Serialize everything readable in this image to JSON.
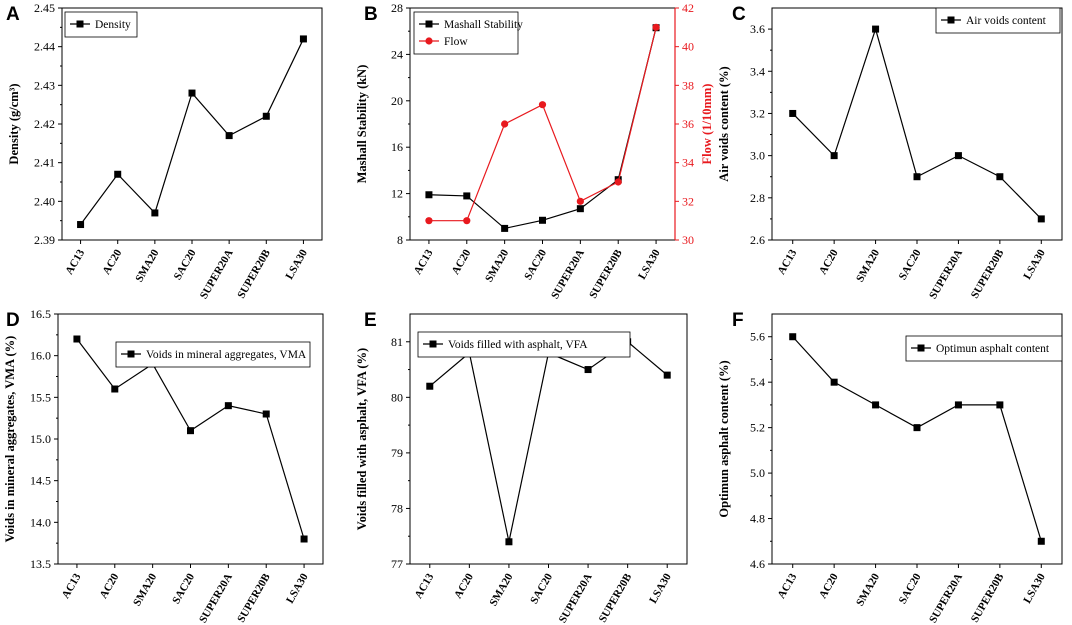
{
  "colors": {
    "primary": "#000000",
    "secondary": "#e8191e"
  },
  "chart_data": [
    {
      "panel": "A",
      "type": "line",
      "categories": [
        "AC13",
        "AC20",
        "SMA20",
        "SAC20",
        "SUPER20A",
        "SUPER20B",
        "LSA30"
      ],
      "ylabel": "Density (g/cm³)",
      "ylim": [
        2.39,
        2.45
      ],
      "yticks": [
        "2.39",
        "2.40",
        "2.41",
        "2.42",
        "2.43",
        "2.44",
        "2.45"
      ],
      "legend_position": "top-left",
      "series": [
        {
          "name": "Density",
          "values": [
            2.394,
            2.407,
            2.397,
            2.428,
            2.417,
            2.422,
            2.442
          ]
        }
      ]
    },
    {
      "panel": "B",
      "type": "line",
      "categories": [
        "AC13",
        "AC20",
        "SMA20",
        "SAC20",
        "SUPER20A",
        "SUPER20B",
        "LSA30"
      ],
      "ylabel": "Mashall Stability (kN)",
      "ylim": [
        8,
        28
      ],
      "yticks": [
        "8",
        "12",
        "16",
        "20",
        "24",
        "28"
      ],
      "y2label": "Flow (1/10mm)",
      "y2lim": [
        30,
        42
      ],
      "y2ticks": [
        "30",
        "32",
        "34",
        "36",
        "38",
        "40",
        "42"
      ],
      "legend_position": "top-left",
      "series": [
        {
          "name": "Mashall Stability",
          "axis": "left",
          "values": [
            11.9,
            11.8,
            9.0,
            9.7,
            10.7,
            13.2,
            26.3
          ]
        },
        {
          "name": "Flow",
          "axis": "right",
          "values": [
            31,
            31,
            36,
            37,
            32,
            33,
            41
          ]
        }
      ]
    },
    {
      "panel": "C",
      "type": "line",
      "categories": [
        "AC13",
        "AC20",
        "SMA20",
        "SAC20",
        "SUPER20A",
        "SUPER20B",
        "LSA30"
      ],
      "ylabel": "Air voids content (%)",
      "ylim": [
        2.6,
        3.7
      ],
      "yticks": [
        "2.6",
        "2.8",
        "3.0",
        "3.2",
        "3.4",
        "3.6"
      ],
      "legend_position": "top-right",
      "series": [
        {
          "name": "Air voids content",
          "values": [
            3.2,
            3.0,
            3.6,
            2.9,
            3.0,
            2.9,
            2.7
          ]
        }
      ]
    },
    {
      "panel": "D",
      "type": "line",
      "categories": [
        "AC13",
        "AC20",
        "SMA20",
        "SAC20",
        "SUPER20A",
        "SUPER20B",
        "LSA30"
      ],
      "ylabel": "Voids in mineral aggregates, VMA (%)",
      "ylim": [
        13.5,
        16.5
      ],
      "yticks": [
        "13.5",
        "14.0",
        "14.5",
        "15.0",
        "15.5",
        "16.0",
        "16.5"
      ],
      "legend_position": "top-right",
      "series": [
        {
          "name": "Voids in mineral aggregates, VMA",
          "values": [
            16.2,
            15.6,
            15.9,
            15.1,
            15.4,
            15.3,
            13.8
          ]
        }
      ]
    },
    {
      "panel": "E",
      "type": "line",
      "categories": [
        "AC13",
        "AC20",
        "SMA20",
        "SAC20",
        "SUPER20A",
        "SUPER20B",
        "LSA30"
      ],
      "ylabel": "Voids filled with asphalt, VFA (%)",
      "ylim": [
        77,
        81.5
      ],
      "yticks": [
        "77",
        "78",
        "79",
        "80",
        "81"
      ],
      "legend_position": "top",
      "series": [
        {
          "name": "Voids filled with asphalt, VFA",
          "values": [
            80.2,
            80.8,
            77.4,
            80.8,
            80.5,
            81.0,
            80.4
          ]
        }
      ]
    },
    {
      "panel": "F",
      "type": "line",
      "categories": [
        "AC13",
        "AC20",
        "SMA20",
        "SAC20",
        "SUPER20A",
        "SUPER20B",
        "LSA30"
      ],
      "ylabel": "Optimun asphalt content (%)",
      "ylim": [
        4.6,
        5.7
      ],
      "yticks": [
        "4.6",
        "4.8",
        "5.0",
        "5.2",
        "5.4",
        "5.6"
      ],
      "legend_position": "top-right",
      "series": [
        {
          "name": "Optimun asphalt content",
          "values": [
            5.6,
            5.4,
            5.3,
            5.2,
            5.3,
            5.3,
            4.7
          ]
        }
      ]
    }
  ]
}
